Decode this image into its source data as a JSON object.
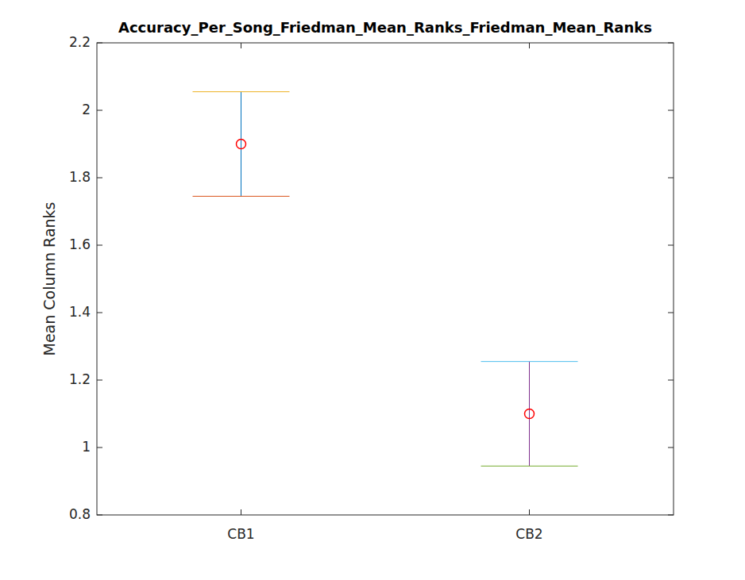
{
  "chart_data": {
    "type": "errorbar",
    "title": "Accuracy_Per_Song_Friedman_Mean_Ranks_Friedman_Mean_Ranks",
    "y_label": "Mean Column Ranks",
    "categories": [
      "CB1",
      "CB2"
    ],
    "values": [
      1.9,
      1.1
    ],
    "error": [
      0.155,
      0.155
    ],
    "color": "#ff0000",
    "marker": "circle",
    "ylim": [
      0.8,
      2.2
    ],
    "yticks": [
      0.8,
      1,
      1.2,
      1.4,
      1.6,
      1.8,
      2,
      2.2
    ],
    "grid": false
  }
}
